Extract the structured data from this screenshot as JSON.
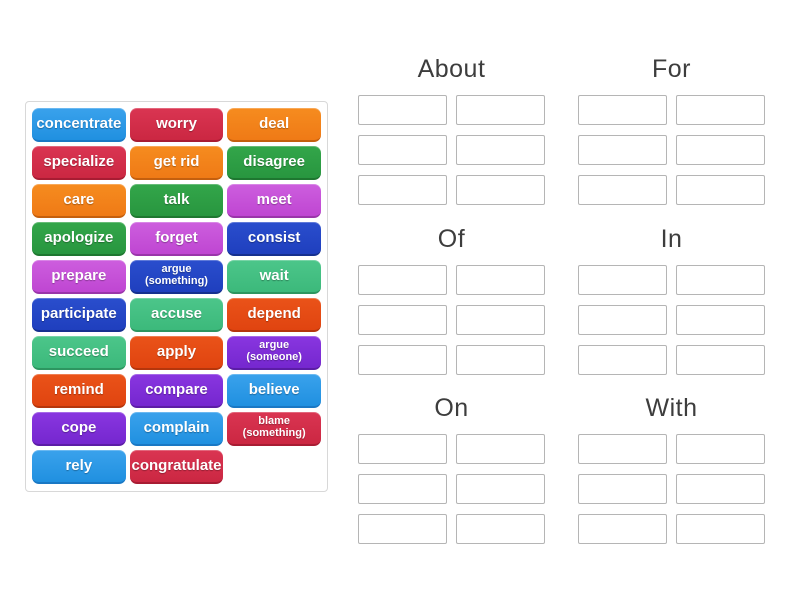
{
  "activity": {
    "type": "group-sort",
    "slots_per_group": 6
  },
  "groups": [
    {
      "label": "About"
    },
    {
      "label": "For"
    },
    {
      "label": "Of"
    },
    {
      "label": "In"
    },
    {
      "label": "On"
    },
    {
      "label": "With"
    }
  ],
  "tiles": [
    {
      "label": "concentrate",
      "color": "blue"
    },
    {
      "label": "worry",
      "color": "crimson"
    },
    {
      "label": "deal",
      "color": "orange"
    },
    {
      "label": "specialize",
      "color": "crimson"
    },
    {
      "label": "get rid",
      "color": "orange"
    },
    {
      "label": "disagree",
      "color": "green"
    },
    {
      "label": "care",
      "color": "orange"
    },
    {
      "label": "talk",
      "color": "green"
    },
    {
      "label": "meet",
      "color": "orchid"
    },
    {
      "label": "apologize",
      "color": "green"
    },
    {
      "label": "forget",
      "color": "orchid"
    },
    {
      "label": "consist",
      "color": "royal"
    },
    {
      "label": "prepare",
      "color": "orchid"
    },
    {
      "label": "argue\n(something)",
      "color": "royal",
      "small": true
    },
    {
      "label": "wait",
      "color": "seagreen"
    },
    {
      "label": "participate",
      "color": "royal"
    },
    {
      "label": "accuse",
      "color": "seagreen"
    },
    {
      "label": "depend",
      "color": "vermilion"
    },
    {
      "label": "succeed",
      "color": "seagreen"
    },
    {
      "label": "apply",
      "color": "vermilion"
    },
    {
      "label": "argue\n(someone)",
      "color": "purple",
      "small": true
    },
    {
      "label": "remind",
      "color": "vermilion"
    },
    {
      "label": "compare",
      "color": "purple"
    },
    {
      "label": "believe",
      "color": "blue"
    },
    {
      "label": "cope",
      "color": "purple"
    },
    {
      "label": "complain",
      "color": "blue"
    },
    {
      "label": "blame\n(something)",
      "color": "crimson",
      "small": true
    },
    {
      "label": "rely",
      "color": "blue"
    },
    {
      "label": "congratulate",
      "color": "crimson"
    }
  ],
  "palette": {
    "blue": {
      "top": "#3aa2ec",
      "bottom": "#2090e0",
      "edge": "#1a78c4"
    },
    "crimson": {
      "top": "#da3552",
      "bottom": "#cb2742",
      "edge": "#a81c33"
    },
    "orange": {
      "top": "#f68c1f",
      "bottom": "#ef7a16",
      "edge": "#c45f0e"
    },
    "green": {
      "top": "#33a64a",
      "bottom": "#28963f",
      "edge": "#1e7730"
    },
    "orchid": {
      "top": "#cd5ede",
      "bottom": "#bf46d2",
      "edge": "#9a35aa"
    },
    "royal": {
      "top": "#2a4ecd",
      "bottom": "#1f3fbe",
      "edge": "#16308f"
    },
    "seagreen": {
      "top": "#4cc68a",
      "bottom": "#3cb97b",
      "edge": "#2d9660"
    },
    "vermilion": {
      "top": "#ea5319",
      "bottom": "#e04410",
      "edge": "#b5360c"
    },
    "purple": {
      "top": "#8936e0",
      "bottom": "#7527cf",
      "edge": "#5c1da6"
    }
  },
  "ui_colors": {
    "page_background": "#ffffff",
    "panel_border": "#d8d8d8",
    "slot_border": "#b5b5b5",
    "header_text": "#3d3d3d",
    "tile_text": "#ffffff"
  }
}
